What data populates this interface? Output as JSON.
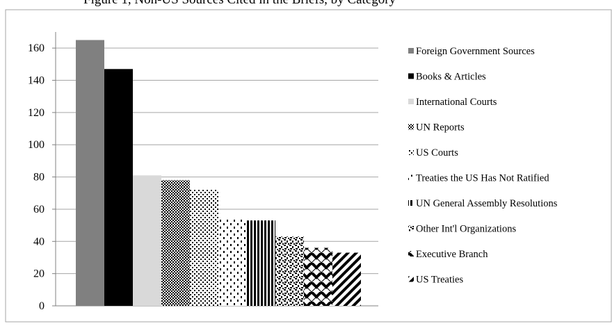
{
  "chart_data": {
    "type": "bar",
    "title": "Figure 1, Non-US Sources Cited in the Briefs, by Category",
    "xlabel": "",
    "ylabel": "",
    "ylim": [
      0,
      170
    ],
    "yticks": [
      0,
      20,
      40,
      60,
      80,
      100,
      120,
      140,
      160
    ],
    "grid": true,
    "legend_position": "right",
    "series": [
      {
        "name": "Foreign Government Sources",
        "value": 165,
        "fill": "#808080",
        "pattern": "solid"
      },
      {
        "name": "Books & Articles",
        "value": 147,
        "fill": "#000000",
        "pattern": "solid"
      },
      {
        "name": "International Courts",
        "value": 81,
        "fill": "#d9d9d9",
        "pattern": "solid"
      },
      {
        "name": "UN Reports",
        "value": 78,
        "fill": "#000000",
        "pattern": "checker"
      },
      {
        "name": "US Courts",
        "value": 72,
        "fill": "#000000",
        "pattern": "dots"
      },
      {
        "name": "Treaties the US Has Not Ratified",
        "value": 54,
        "fill": "#000000",
        "pattern": "sparse-dashes"
      },
      {
        "name": "UN General Assembly Resolutions",
        "value": 53,
        "fill": "#000000",
        "pattern": "vertical-lines"
      },
      {
        "name": "Other Int'l Organizations",
        "value": 43,
        "fill": "#000000",
        "pattern": "confetti"
      },
      {
        "name": "Executive Branch",
        "value": 36,
        "fill": "#000000",
        "pattern": "zigzag-thick"
      },
      {
        "name": "US Treaties",
        "value": 33,
        "fill": "#000000",
        "pattern": "diagonal-thick"
      }
    ]
  }
}
